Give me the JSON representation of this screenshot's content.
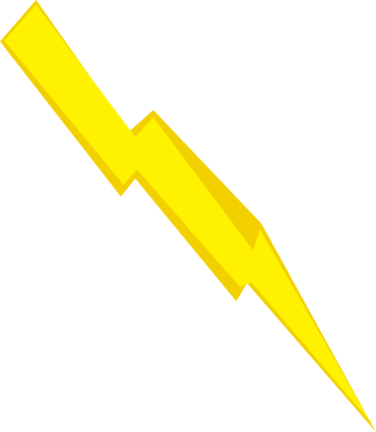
{
  "graphic": {
    "icon": "lightning-bolt",
    "colors": {
      "background": "#ffffff",
      "bolt_fill": "#FFF200",
      "bolt_shadow": "#F2D000"
    }
  }
}
